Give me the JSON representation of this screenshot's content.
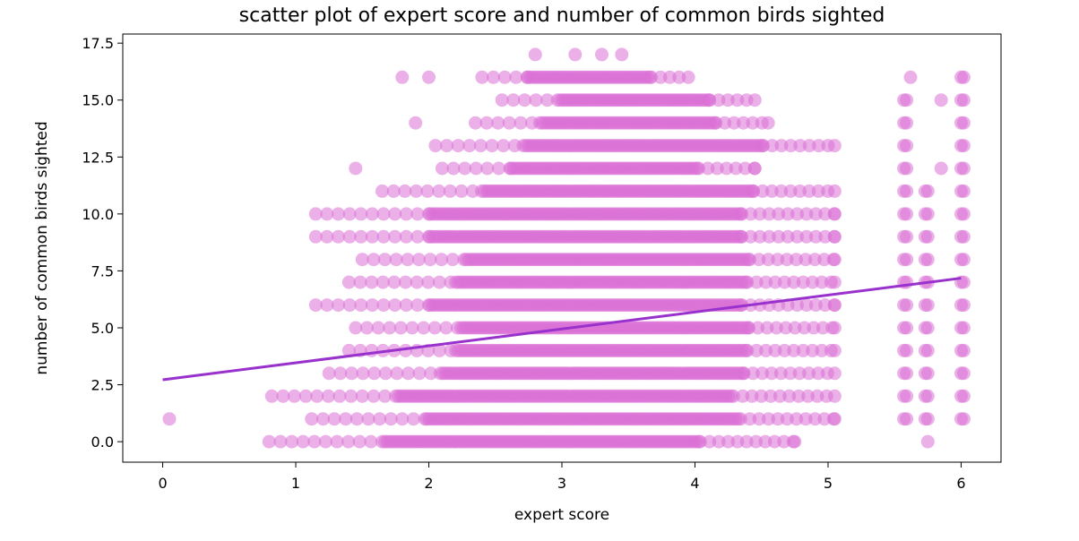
{
  "chart_data": {
    "type": "scatter",
    "title": "scatter plot of expert score and number of common birds sighted",
    "xlabel": "expert score",
    "ylabel": "number of common birds sighted",
    "xlim": [
      -0.3,
      6.3
    ],
    "ylim": [
      -0.9,
      17.9
    ],
    "x_ticks": [
      0,
      1,
      2,
      3,
      4,
      5,
      6
    ],
    "x_tick_labels": [
      "0",
      "1",
      "2",
      "3",
      "4",
      "5",
      "6"
    ],
    "y_ticks": [
      0,
      2.5,
      5,
      7.5,
      10,
      12.5,
      15,
      17.5
    ],
    "y_tick_labels": [
      "0.0",
      "2.5",
      "5.0",
      "7.5",
      "10.0",
      "12.5",
      "15.0",
      "17.5"
    ],
    "grid": false,
    "colors": {
      "points": "#da70d6",
      "trend_line": "#9932cc"
    },
    "series": [
      {
        "kind": "bands",
        "description_of_marks": "dense horizontal bands of points at integer y values",
        "bands": [
          {
            "y": 0,
            "x_range": [
              0.8,
              4.75
            ]
          },
          {
            "y": 1,
            "x_range": [
              1.12,
              5.05
            ]
          },
          {
            "y": 2,
            "x_range": [
              0.82,
              5.05
            ]
          },
          {
            "y": 3,
            "x_range": [
              1.25,
              5.05
            ]
          },
          {
            "y": 4,
            "x_range": [
              1.4,
              5.05
            ]
          },
          {
            "y": 5,
            "x_range": [
              1.45,
              5.05
            ]
          },
          {
            "y": 6,
            "x_range": [
              1.15,
              5.05
            ]
          },
          {
            "y": 7,
            "x_range": [
              1.4,
              5.05
            ]
          },
          {
            "y": 8,
            "x_range": [
              1.5,
              5.05
            ]
          },
          {
            "y": 9,
            "x_range": [
              1.15,
              5.05
            ]
          },
          {
            "y": 10,
            "x_range": [
              1.15,
              5.05
            ]
          },
          {
            "y": 11,
            "x_range": [
              1.65,
              5.05
            ]
          },
          {
            "y": 12,
            "x_range": [
              2.1,
              4.45
            ]
          },
          {
            "y": 13,
            "x_range": [
              2.05,
              5.05
            ]
          },
          {
            "y": 14,
            "x_range": [
              2.35,
              4.55
            ]
          },
          {
            "y": 15,
            "x_range": [
              2.55,
              4.45
            ]
          },
          {
            "y": 16,
            "x_range": [
              2.4,
              3.95
            ]
          }
        ],
        "columns": [
          {
            "x": 5.57,
            "y_values": [
              1,
              2,
              3,
              4,
              5,
              6,
              7,
              8,
              9,
              10,
              11,
              12,
              13,
              14,
              15
            ]
          },
          {
            "x": 5.73,
            "y_values": [
              1,
              2,
              3,
              4,
              5,
              6,
              7,
              8,
              9,
              10,
              11
            ]
          },
          {
            "x": 6.0,
            "y_values": [
              1,
              2,
              3,
              4,
              5,
              6,
              7,
              8,
              9,
              10,
              11,
              12,
              13,
              14,
              15,
              16
            ]
          }
        ],
        "extra_points": [
          [
            0.05,
            1
          ],
          [
            2.8,
            17
          ],
          [
            3.1,
            17
          ],
          [
            3.3,
            17
          ],
          [
            3.45,
            17
          ],
          [
            1.8,
            16
          ],
          [
            2.0,
            16
          ],
          [
            1.9,
            14
          ],
          [
            1.45,
            12
          ],
          [
            5.75,
            0
          ],
          [
            5.85,
            15
          ],
          [
            5.85,
            12
          ],
          [
            5.62,
            16
          ]
        ]
      }
    ],
    "trend_line": {
      "x": [
        0,
        6
      ],
      "y": [
        2.72,
        7.18
      ]
    }
  }
}
